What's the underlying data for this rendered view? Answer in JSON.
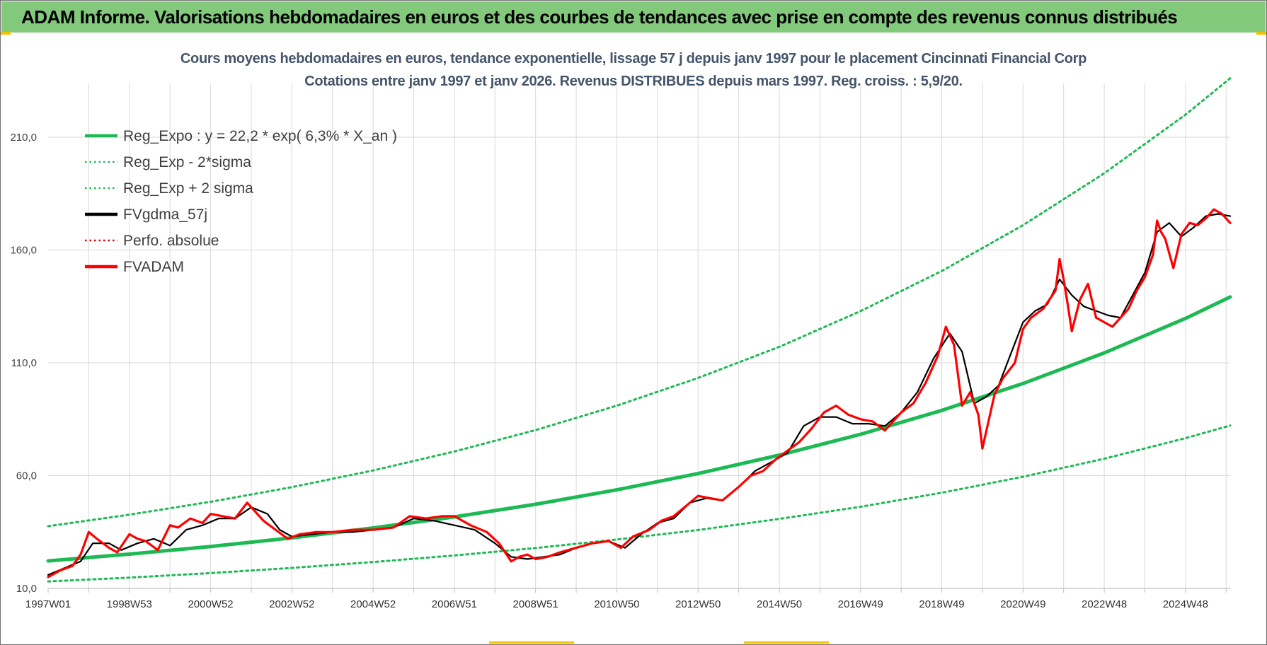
{
  "banner": {
    "title": "ADAM Informe. Valorisations hebdomadaires en euros et des courbes de tendances avec prise en compte des revenus connus distribués"
  },
  "chart_data": {
    "type": "line",
    "title": "Cours moyens hebdomadaires en euros, tendance exponentielle, lissage 57 j depuis janv 1997  pour le placement Cincinnati Financial Corp",
    "subtitle": "Cotations entre janv 1997 et janv 2026. Revenus DISTRIBUES depuis mars 1997.  Reg. croiss. : 5,9/20.",
    "xlabel": "",
    "ylabel": "",
    "xlim": [
      1997.0,
      2026.1
    ],
    "ylim": [
      10,
      230
    ],
    "yticks": [
      "10,0",
      "60,0",
      "110,0",
      "160,0",
      "210,0"
    ],
    "ytick_values": [
      10,
      60,
      110,
      160,
      210
    ],
    "xticks": [
      "1997W01",
      "1998W53",
      "2000W52",
      "2002W52",
      "2004W52",
      "2006W51",
      "2008W51",
      "2010W50",
      "2012W50",
      "2014W50",
      "2016W49",
      "2018W49",
      "2020W49",
      "2022W48",
      "2024W48"
    ],
    "xtick_values": [
      1997.0,
      1999.0,
      2001.0,
      2003.0,
      2005.0,
      2007.0,
      2009.0,
      2011.0,
      2013.0,
      2015.0,
      2017.0,
      2019.0,
      2021.0,
      2023.0,
      2025.0
    ],
    "grid": true,
    "legend_position": "top-left",
    "series": [
      {
        "name": "Reg_Expo : y = 22,2 * exp( 6,3% *  X_an )",
        "style": "solid-thick",
        "color": "#1db954",
        "x": [
          1997.0,
          1999.0,
          2001.0,
          2003.0,
          2005.0,
          2007.0,
          2009.0,
          2011.0,
          2013.0,
          2015.0,
          2017.0,
          2019.0,
          2021.0,
          2023.0,
          2025.0,
          2026.1
        ],
        "values": [
          22.2,
          25.2,
          28.6,
          32.4,
          36.8,
          41.7,
          47.3,
          53.7,
          60.9,
          69.1,
          78.3,
          88.9,
          100.8,
          114.4,
          129.7,
          139.2
        ]
      },
      {
        "name": "Reg_Exp - 2*sigma",
        "style": "dotted",
        "color": "#1db954",
        "x": [
          1997.0,
          1999.0,
          2001.0,
          2003.0,
          2005.0,
          2007.0,
          2009.0,
          2011.0,
          2013.0,
          2015.0,
          2017.0,
          2019.0,
          2021.0,
          2023.0,
          2025.0,
          2026.1
        ],
        "values": [
          13.1,
          14.8,
          16.8,
          19.1,
          21.7,
          24.6,
          27.9,
          31.7,
          35.9,
          40.8,
          46.2,
          52.4,
          59.5,
          67.5,
          76.6,
          82.2
        ]
      },
      {
        "name": "Reg_Exp + 2 sigma",
        "style": "dotted",
        "color": "#1db954",
        "x": [
          1997.0,
          1999.0,
          2001.0,
          2003.0,
          2005.0,
          2007.0,
          2009.0,
          2011.0,
          2013.0,
          2015.0,
          2017.0,
          2019.0,
          2021.0,
          2023.0,
          2025.0,
          2026.1
        ],
        "values": [
          37.6,
          42.7,
          48.4,
          54.9,
          62.3,
          70.7,
          80.2,
          91.0,
          103.3,
          117.1,
          132.9,
          150.7,
          171.0,
          194.0,
          220.0,
          236.1
        ]
      },
      {
        "name": "FVgdma_57j",
        "style": "solid",
        "color": "#000000",
        "x": [
          1997.0,
          1997.4,
          1997.8,
          1998.1,
          1998.5,
          1998.8,
          1999.2,
          1999.6,
          2000.0,
          2000.4,
          2000.8,
          2001.2,
          2001.6,
          2002.0,
          2002.4,
          2002.7,
          2003.0,
          2003.5,
          2004.0,
          2004.5,
          2005.0,
          2005.5,
          2006.0,
          2006.5,
          2007.0,
          2007.5,
          2008.0,
          2008.4,
          2008.8,
          2009.2,
          2009.6,
          2010.0,
          2010.4,
          2010.8,
          2011.2,
          2011.6,
          2012.0,
          2012.4,
          2012.8,
          2013.2,
          2013.6,
          2014.0,
          2014.4,
          2014.8,
          2015.2,
          2015.6,
          2016.0,
          2016.4,
          2016.8,
          2017.2,
          2017.6,
          2018.0,
          2018.4,
          2018.8,
          2019.2,
          2019.5,
          2019.8,
          2020.1,
          2020.4,
          2020.7,
          2021.0,
          2021.3,
          2021.6,
          2021.9,
          2022.2,
          2022.5,
          2022.8,
          2023.1,
          2023.4,
          2023.7,
          2024.0,
          2024.3,
          2024.6,
          2024.9,
          2025.2,
          2025.5,
          2025.8,
          2026.1
        ],
        "values": [
          16,
          19,
          22,
          30,
          30,
          27,
          30,
          32,
          29,
          36,
          38,
          41,
          41,
          46,
          43,
          36,
          33,
          34,
          35,
          35,
          36,
          37,
          41,
          40,
          38,
          36,
          30,
          24,
          23,
          24,
          25,
          28,
          30,
          31,
          28,
          34,
          39,
          41,
          48,
          50,
          49,
          55,
          62,
          66,
          70,
          82,
          86,
          86,
          83,
          83,
          82,
          88,
          97,
          112,
          123,
          115,
          92,
          95,
          100,
          114,
          128,
          133,
          136,
          147,
          140,
          135,
          133,
          131,
          130,
          140,
          150,
          168,
          172,
          166,
          170,
          175,
          176,
          175
        ]
      },
      {
        "name": "Perfo. absolue",
        "style": "dotted",
        "color": "#e00000",
        "x": [],
        "values": []
      },
      {
        "name": "FVADAM",
        "style": "solid-thick",
        "color": "#ff0000",
        "x": [
          1997.0,
          1997.3,
          1997.6,
          1997.8,
          1998.0,
          1998.2,
          1998.5,
          1998.7,
          1999.0,
          1999.2,
          1999.4,
          1999.7,
          2000.0,
          2000.2,
          2000.5,
          2000.8,
          2001.0,
          2001.3,
          2001.6,
          2001.9,
          2002.1,
          2002.3,
          2002.6,
          2002.9,
          2003.2,
          2003.6,
          2004.0,
          2004.5,
          2005.0,
          2005.5,
          2005.9,
          2006.3,
          2006.7,
          2007.0,
          2007.4,
          2007.8,
          2008.1,
          2008.4,
          2008.6,
          2008.8,
          2009.0,
          2009.3,
          2009.6,
          2010.0,
          2010.4,
          2010.8,
          2011.1,
          2011.4,
          2011.8,
          2012.1,
          2012.4,
          2012.8,
          2013.0,
          2013.3,
          2013.6,
          2014.0,
          2014.3,
          2014.6,
          2014.9,
          2015.2,
          2015.5,
          2015.8,
          2016.1,
          2016.4,
          2016.7,
          2017.0,
          2017.3,
          2017.6,
          2018.0,
          2018.3,
          2018.6,
          2018.9,
          2019.1,
          2019.3,
          2019.5,
          2019.7,
          2019.9,
          2020.0,
          2020.15,
          2020.3,
          2020.5,
          2020.8,
          2021.0,
          2021.2,
          2021.5,
          2021.8,
          2021.9,
          2022.0,
          2022.1,
          2022.2,
          2022.4,
          2022.6,
          2022.8,
          2023.0,
          2023.2,
          2023.4,
          2023.6,
          2023.8,
          2024.0,
          2024.2,
          2024.3,
          2024.4,
          2024.5,
          2024.7,
          2024.9,
          2025.1,
          2025.3,
          2025.5,
          2025.7,
          2025.9,
          2026.1
        ],
        "values": [
          15,
          18,
          20,
          25,
          35,
          32,
          28,
          26,
          34,
          32,
          31,
          27,
          38,
          37,
          41,
          39,
          43,
          42,
          41,
          48,
          44,
          40,
          36,
          32,
          34,
          35,
          35,
          36,
          36,
          37,
          42,
          41,
          42,
          42,
          38,
          35,
          30,
          22,
          24,
          25,
          23,
          24,
          26,
          28,
          30,
          31,
          28,
          33,
          36,
          40,
          42,
          48,
          51,
          50,
          49,
          55,
          60,
          62,
          67,
          71,
          75,
          81,
          88,
          91,
          87,
          85,
          84,
          80,
          88,
          92,
          101,
          113,
          126,
          118,
          91,
          97,
          87,
          72,
          84,
          96,
          103,
          110,
          125,
          130,
          134,
          142,
          156,
          147,
          136,
          124,
          138,
          145,
          130,
          128,
          126,
          130,
          134,
          142,
          148,
          158,
          173,
          168,
          165,
          152,
          167,
          172,
          171,
          174,
          178,
          176,
          172
        ]
      }
    ]
  }
}
